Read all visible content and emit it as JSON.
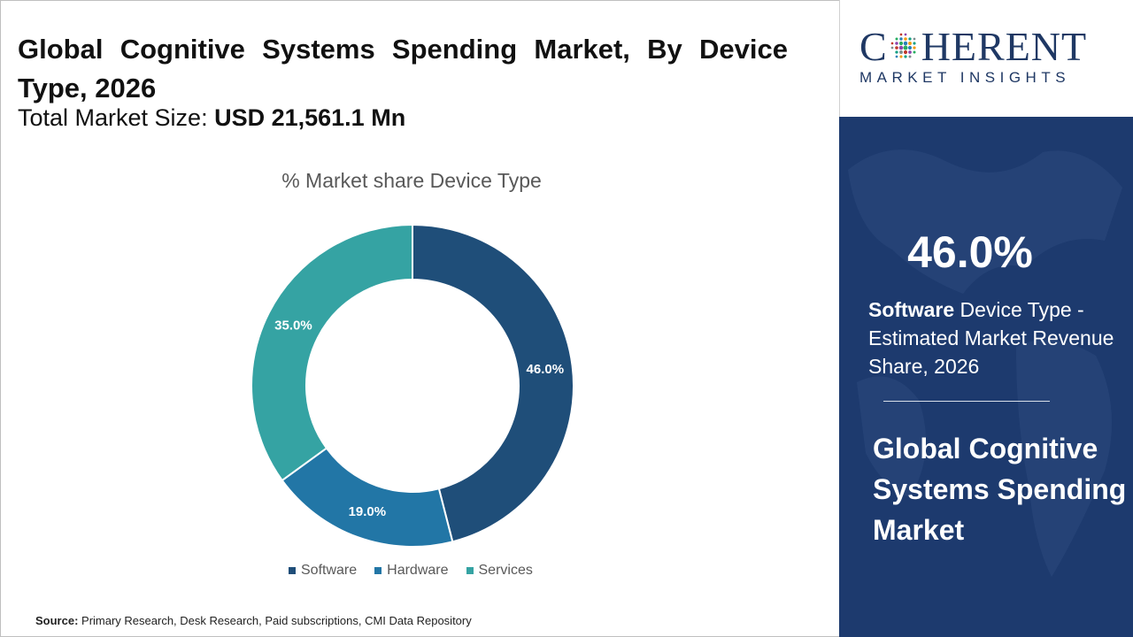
{
  "header": {
    "title": "Global Cognitive Systems Spending Market, By Device Type, 2026",
    "subtitle_label": "Total Market Size:",
    "subtitle_value": "USD 21,561.1 Mn"
  },
  "chart_data": {
    "type": "pie",
    "style": "donut",
    "title": "% Market share Device Type",
    "categories": [
      "Software",
      "Hardware",
      "Services"
    ],
    "values": [
      46.0,
      19.0,
      35.0
    ],
    "labels": [
      "46.0%",
      "19.0%",
      "35.0%"
    ],
    "colors": [
      "#1f4e79",
      "#2276a6",
      "#35a3a3"
    ],
    "legend_position": "bottom"
  },
  "source": {
    "label": "Source:",
    "text": "Primary Research, Desk Research, Paid subscriptions, CMI Data Repository"
  },
  "brand": {
    "name_part1": "C",
    "name_part2": "HERENT",
    "tagline": "MARKET INSIGHTS",
    "color": "#1f3864"
  },
  "side_panel": {
    "highlight_value": "46.0%",
    "segment_name": "Software",
    "description": " Device Type - Estimated Market Revenue Share, 2026",
    "market_name": "Global Cognitive Systems Spending Market",
    "background_color": "#1d3a6e"
  }
}
